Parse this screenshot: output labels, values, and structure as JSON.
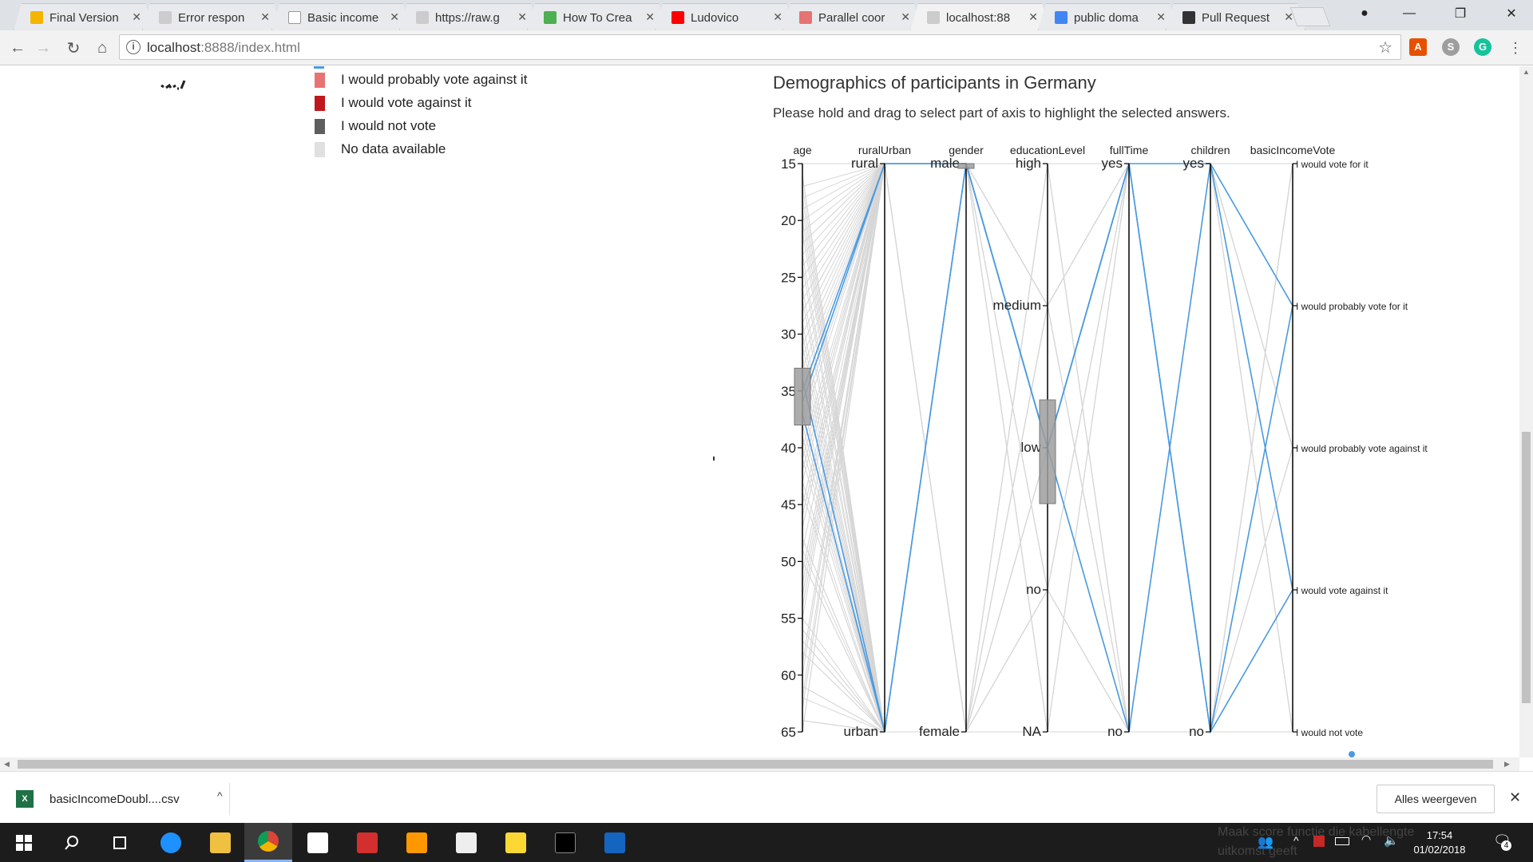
{
  "browser": {
    "tabs": [
      {
        "label": "Final Version",
        "icon_color": "#f4b400"
      },
      {
        "label": "Error respon",
        "icon_color": "#cccccc"
      },
      {
        "label": "Basic income",
        "icon_color": "#ffffff"
      },
      {
        "label": "https://raw.g",
        "icon_color": "#cccccc"
      },
      {
        "label": "How To Crea",
        "icon_color": "#4caf50"
      },
      {
        "label": "Ludovico",
        "icon_color": "#ff0000"
      },
      {
        "label": "Parallel coor",
        "icon_color": "#e57373"
      },
      {
        "label": "localhost:88",
        "icon_color": "#cccccc"
      },
      {
        "label": "public doma",
        "icon_color": "#4285f4"
      },
      {
        "label": "Pull Request",
        "icon_color": "#333333"
      }
    ],
    "url_host": "localhost",
    "url_path": ":8888/index.html"
  },
  "legend": [
    {
      "label": "I would probably vote against it",
      "color": "#e77472"
    },
    {
      "label": "I would vote against it",
      "color": "#c0171c"
    },
    {
      "label": "I would not vote",
      "color": "#5e5e5e"
    },
    {
      "label": "No data available",
      "color": "#e0e0e0"
    }
  ],
  "visualization": {
    "title": "Demographics of participants in Germany",
    "subtitle": "Please hold and drag to select part of axis to highlight the selected answers."
  },
  "chart_data": {
    "type": "parallel-coordinates",
    "dimensions": [
      {
        "name": "age",
        "type": "numeric",
        "range": [
          15,
          65
        ],
        "ticks": [
          15,
          20,
          25,
          30,
          35,
          40,
          45,
          50,
          55,
          60,
          65
        ],
        "brush": [
          33,
          38
        ]
      },
      {
        "name": "ruralUrban",
        "type": "categorical",
        "categories": [
          "rural",
          "urban"
        ]
      },
      {
        "name": "gender",
        "type": "categorical",
        "categories": [
          "male",
          "female"
        ],
        "brush": [
          "male",
          "male"
        ]
      },
      {
        "name": "educationLevel",
        "type": "categorical",
        "categories": [
          "high",
          "medium",
          "low",
          "no",
          "NA"
        ],
        "brush": [
          "low",
          "low"
        ]
      },
      {
        "name": "fullTime",
        "type": "categorical",
        "categories": [
          "yes",
          "no"
        ]
      },
      {
        "name": "children",
        "type": "categorical",
        "categories": [
          "yes",
          "no"
        ]
      },
      {
        "name": "basicIncomeVote",
        "type": "categorical",
        "categories": [
          "I would vote for it",
          "I would probably vote for it",
          "I would probably vote against it",
          "I would vote against it",
          "I would not vote"
        ]
      }
    ],
    "highlight_color": "#4a9ae0",
    "background_color": "#d6d6d6",
    "highlighted_records": [
      {
        "age": 35,
        "ruralUrban": "rural",
        "gender": "male",
        "educationLevel": "low",
        "fullTime": "yes",
        "children": "yes",
        "basicIncomeVote": "I would probably vote for it"
      },
      {
        "age": 37,
        "ruralUrban": "urban",
        "gender": "male",
        "educationLevel": "low",
        "fullTime": "yes",
        "children": "no",
        "basicIncomeVote": "I would vote against it"
      },
      {
        "age": 36,
        "ruralUrban": "rural",
        "gender": "male",
        "educationLevel": "low",
        "fullTime": "no",
        "children": "yes",
        "basicIncomeVote": "I would vote against it"
      },
      {
        "age": 34,
        "ruralUrban": "urban",
        "gender": "male",
        "educationLevel": "low",
        "fullTime": "yes",
        "children": "no",
        "basicIncomeVote": "I would probably vote for it"
      }
    ]
  },
  "download_bar": {
    "file_name": "basicIncomeDoubl....csv",
    "file_icon": "X",
    "show_all_label": "Alles weergeven"
  },
  "taskbar": {
    "tray_text": "Maak score functie die kabellengte uitkomst geeft",
    "time": "17:54",
    "date": "01/02/2018",
    "notification_count": "4"
  }
}
